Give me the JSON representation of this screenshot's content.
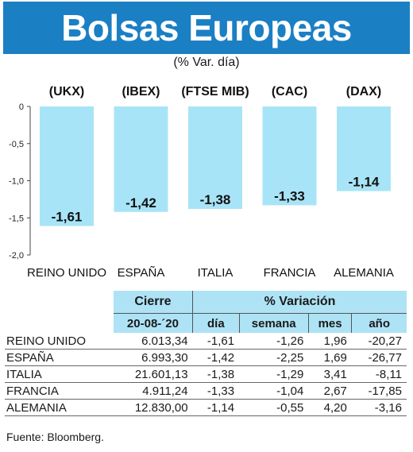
{
  "title": "Bolsas Europeas",
  "subtitle": "(% Var. día)",
  "chart_data": {
    "type": "bar",
    "tickers": [
      "(UKX)",
      "(IBEX)",
      "(FTSE MIB)",
      "(CAC)",
      "(DAX)"
    ],
    "categories": [
      "REINO UNIDO",
      "ESPAÑA",
      "ITALIA",
      "FRANCIA",
      "ALEMANIA"
    ],
    "values": [
      -1.61,
      -1.42,
      -1.38,
      -1.33,
      -1.14
    ],
    "value_labels": [
      "-1,61",
      "-1,42",
      "-1,38",
      "-1,33",
      "-1,14"
    ],
    "ylim": [
      -2.0,
      0
    ],
    "yticks": [
      0,
      -0.5,
      -1.0,
      -1.5,
      -2.0
    ],
    "ytick_labels": [
      "0",
      "-0,5",
      "-1,0",
      "-1,5",
      "-2,0"
    ],
    "bar_color": "#a8e4f7",
    "grid": false
  },
  "table": {
    "group_headers": [
      "Cierre",
      "% Variación"
    ],
    "columns": [
      "20-08-´20",
      "día",
      "semana",
      "mes",
      "año"
    ],
    "rows": [
      {
        "name": "REINO UNIDO",
        "cierre": "6.013,34",
        "dia": "-1,61",
        "semana": "-1,26",
        "mes": "1,96",
        "ano": "-20,27"
      },
      {
        "name": "ESPAÑA",
        "cierre": "6.993,30",
        "dia": "-1,42",
        "semana": "-2,25",
        "mes": "1,69",
        "ano": "-26,77"
      },
      {
        "name": "ITALIA",
        "cierre": "21.601,13",
        "dia": "-1,38",
        "semana": "-1,29",
        "mes": "3,41",
        "ano": "-8,11"
      },
      {
        "name": "FRANCIA",
        "cierre": "4.911,24",
        "dia": "-1,33",
        "semana": "-1,04",
        "mes": "2,67",
        "ano": "-17,85"
      },
      {
        "name": "ALEMANIA",
        "cierre": "12.830,00",
        "dia": "-1,14",
        "semana": "-0,55",
        "mes": "4,20",
        "ano": "-3,16"
      }
    ]
  },
  "source": "Fuente: Bloomberg."
}
